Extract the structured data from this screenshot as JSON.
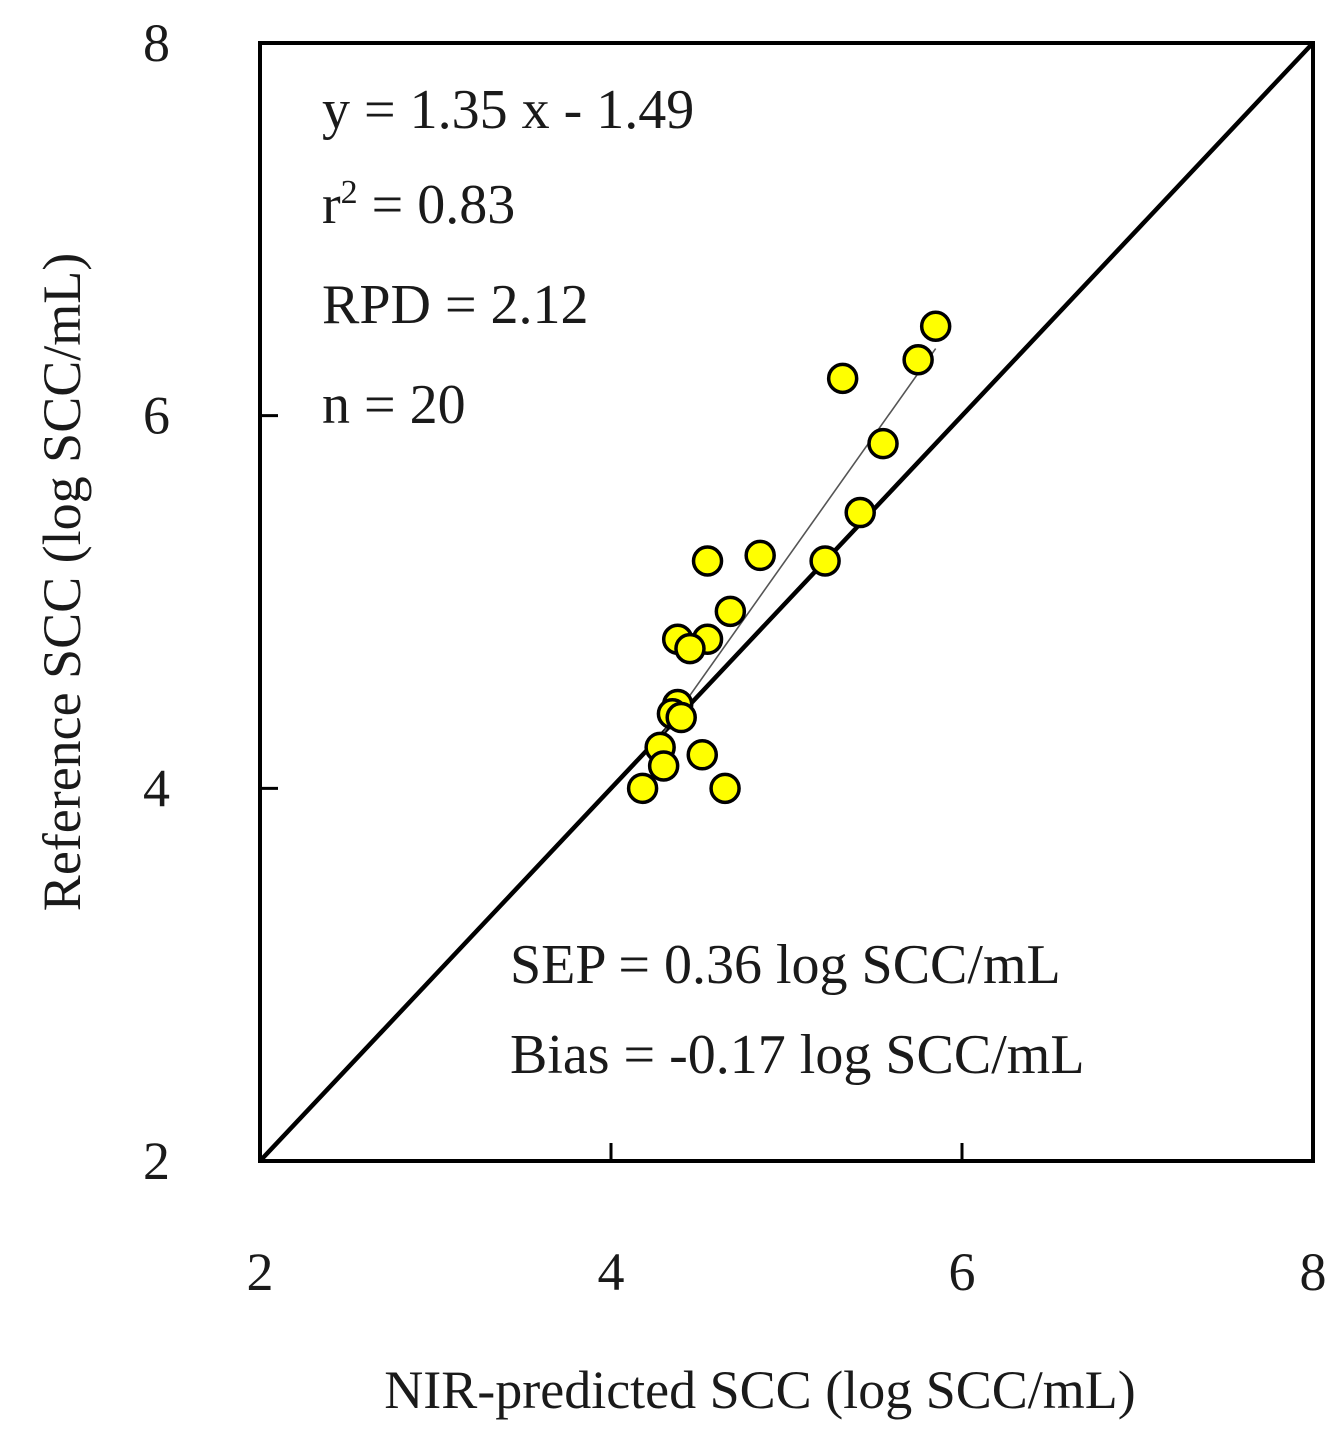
{
  "chart_data": {
    "type": "scatter",
    "xlabel": "NIR-predicted SCC (log SCC/mL)",
    "ylabel": "Reference SCC (log SCC/mL)",
    "xlim": [
      2,
      8
    ],
    "ylim": [
      2,
      8
    ],
    "xticks": [
      2,
      4,
      6,
      8
    ],
    "yticks": [
      2,
      4,
      6,
      8
    ],
    "grid": false,
    "point_color": "#ffff00",
    "point_edge_color": "#000000",
    "series": [
      {
        "name": "samples",
        "x": [
          5.85,
          5.75,
          5.32,
          5.55,
          5.42,
          5.22,
          4.85,
          4.55,
          4.68,
          4.38,
          4.55,
          4.45,
          4.38,
          4.35,
          4.28,
          4.3,
          4.52,
          4.18,
          4.65,
          4.4
        ],
        "y": [
          6.48,
          6.3,
          6.2,
          5.85,
          5.48,
          5.22,
          5.25,
          5.22,
          4.95,
          4.8,
          4.8,
          4.75,
          4.45,
          4.4,
          4.22,
          4.12,
          4.18,
          4.0,
          4.0,
          4.38
        ]
      }
    ],
    "lines": [
      {
        "name": "1:1 line",
        "x": [
          2,
          8
        ],
        "y": [
          2,
          8
        ],
        "color": "#000000",
        "style": "thick"
      },
      {
        "name": "regression line",
        "x": [
          4.3,
          5.85
        ],
        "y": [
          4.3,
          6.36
        ],
        "color": "#555555",
        "style": "thin"
      }
    ],
    "annotations": {
      "equation": "y = 1.35 x - 1.49",
      "r2_prefix": "r",
      "r2_sup": "2",
      "r2_value": " = 0.83",
      "rpd": "RPD = 2.12",
      "n": "n = 20",
      "sep": "SEP = 0.36 log SCC/mL",
      "bias": "Bias = -0.17 log SCC/mL"
    }
  }
}
